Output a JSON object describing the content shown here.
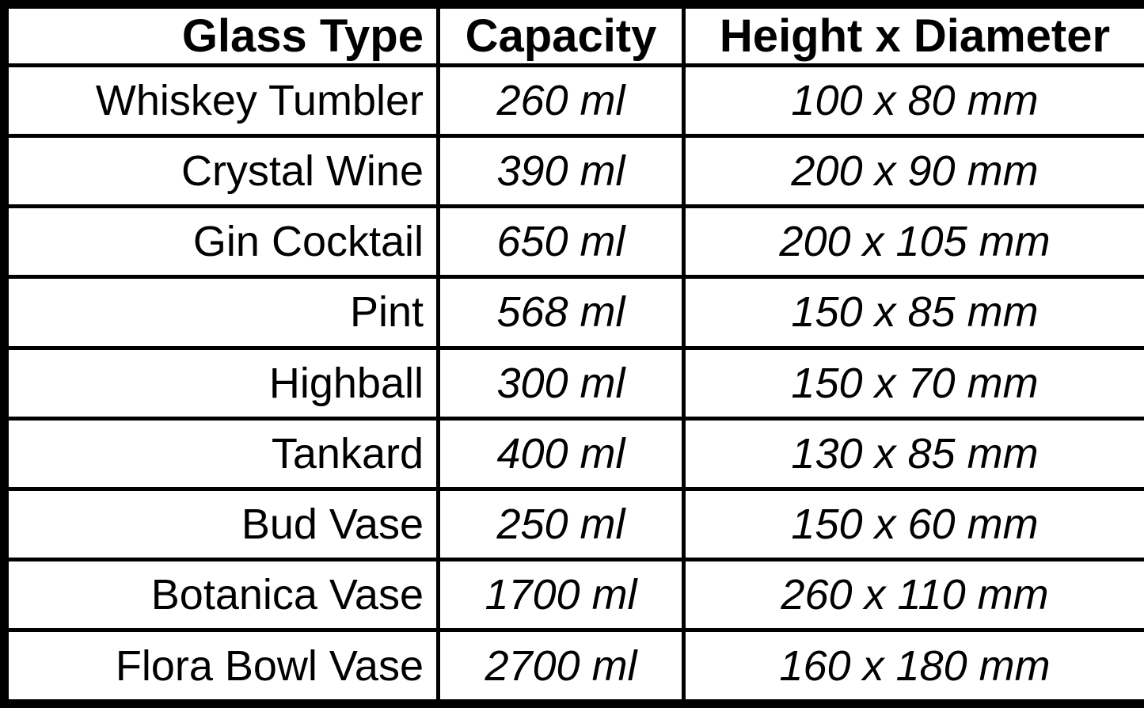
{
  "colors": {
    "background": "#ffffff",
    "border": "#000000",
    "text": "#000000"
  },
  "table": {
    "headers": {
      "glass_type": "Glass Type",
      "capacity": "Capacity",
      "dimensions": "Height x Diameter"
    },
    "rows": [
      {
        "glass_type": "Whiskey Tumbler",
        "capacity": "260 ml",
        "dimensions": "100 x 80 mm"
      },
      {
        "glass_type": "Crystal Wine",
        "capacity": "390 ml",
        "dimensions": "200 x 90 mm"
      },
      {
        "glass_type": "Gin Cocktail",
        "capacity": "650 ml",
        "dimensions": "200 x 105 mm"
      },
      {
        "glass_type": "Pint",
        "capacity": "568 ml",
        "dimensions": "150 x 85 mm"
      },
      {
        "glass_type": "Highball",
        "capacity": "300 ml",
        "dimensions": "150 x 70 mm"
      },
      {
        "glass_type": "Tankard",
        "capacity": "400 ml",
        "dimensions": "130 x 85 mm"
      },
      {
        "glass_type": "Bud Vase",
        "capacity": "250 ml",
        "dimensions": "150 x 60 mm"
      },
      {
        "glass_type": "Botanica Vase",
        "capacity": "1700 ml",
        "dimensions": "260 x 110 mm"
      },
      {
        "glass_type": "Flora Bowl Vase",
        "capacity": "2700 ml",
        "dimensions": "160 x 180 mm"
      }
    ]
  },
  "chart_data": {
    "type": "table",
    "title": "",
    "columns": [
      "Glass Type",
      "Capacity",
      "Height x Diameter"
    ],
    "records": [
      {
        "glass_type": "Whiskey Tumbler",
        "capacity_ml": 260,
        "height_mm": 100,
        "diameter_mm": 80
      },
      {
        "glass_type": "Crystal Wine",
        "capacity_ml": 390,
        "height_mm": 200,
        "diameter_mm": 90
      },
      {
        "glass_type": "Gin Cocktail",
        "capacity_ml": 650,
        "height_mm": 200,
        "diameter_mm": 105
      },
      {
        "glass_type": "Pint",
        "capacity_ml": 568,
        "height_mm": 150,
        "diameter_mm": 85
      },
      {
        "glass_type": "Highball",
        "capacity_ml": 300,
        "height_mm": 150,
        "diameter_mm": 70
      },
      {
        "glass_type": "Tankard",
        "capacity_ml": 400,
        "height_mm": 130,
        "diameter_mm": 85
      },
      {
        "glass_type": "Bud Vase",
        "capacity_ml": 250,
        "height_mm": 150,
        "diameter_mm": 60
      },
      {
        "glass_type": "Botanica Vase",
        "capacity_ml": 1700,
        "height_mm": 260,
        "diameter_mm": 110
      },
      {
        "glass_type": "Flora Bowl Vase",
        "capacity_ml": 2700,
        "height_mm": 160,
        "diameter_mm": 180
      }
    ]
  }
}
